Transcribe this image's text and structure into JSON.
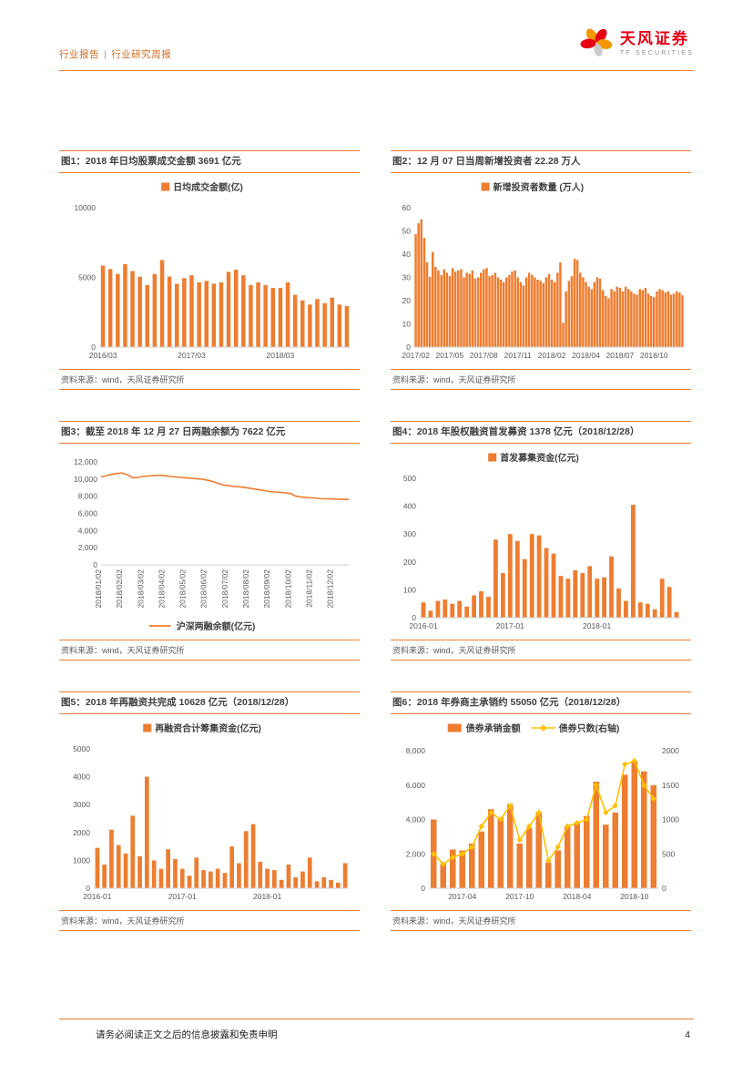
{
  "header": {
    "category": "行业报告",
    "divider": "|",
    "subtitle": "行业研究周报",
    "brand_name": "天风证券",
    "brand_sub": "TF SECURITIES"
  },
  "footer": {
    "disclaimer": "请务必阅读正文之后的信息披露和免责申明",
    "page_number": "4"
  },
  "source_label": "资料来源：wind，天风证券研究所",
  "colors": {
    "accent": "#ED7D31",
    "bar": "#ED7D31",
    "line_secondary": "#FFC000",
    "brand_red": "#E60012",
    "brand_orange": "#F39800",
    "brand_gray": "#C9CACA"
  },
  "chart_data": [
    {
      "id": "figure-1",
      "title": "图1：2018 年日均股票成交金额 3691 亿元",
      "type": "bar",
      "legend": [
        {
          "shape": "square",
          "label": "日均成交金额(亿)",
          "color": "#ED7D31"
        }
      ],
      "legend_pos": "top",
      "bars": {
        "color": "#ED7D31",
        "values": [
          5850,
          5600,
          5250,
          5950,
          5450,
          5050,
          4450,
          5250,
          6250,
          5050,
          4550,
          4950,
          5150,
          4650,
          4750,
          4550,
          4650,
          5400,
          5550,
          5150,
          4450,
          4650,
          4450,
          4250,
          4250,
          4650,
          3750,
          3350,
          3050,
          3450,
          3150,
          3550,
          3050,
          2950
        ]
      },
      "ylim": [
        0,
        10000
      ],
      "yticks": [
        {
          "v": 0,
          "t": "0"
        },
        {
          "v": 5000,
          "t": "5000"
        },
        {
          "v": 10000,
          "t": "10000"
        }
      ],
      "xticks": [
        {
          "index": 0,
          "label": "2016/03"
        },
        {
          "index": 12,
          "label": "2017/03"
        },
        {
          "index": 24,
          "label": "2018/03"
        }
      ]
    },
    {
      "id": "figure-2",
      "title": "图2：12 月 07 日当周新增投资者 22.28 万人",
      "type": "bar",
      "legend": [
        {
          "shape": "square",
          "label": "新增投资者数量 (万人)",
          "color": "#ED7D31"
        }
      ],
      "legend_pos": "top",
      "bars": {
        "color": "#ED7D31",
        "values": [
          48.6,
          53.3,
          55.0,
          47.0,
          36.5,
          30.2,
          41.0,
          34.5,
          33.0,
          31.0,
          33.5,
          32.0,
          30.5,
          34.0,
          32.5,
          33.0,
          33.5,
          30.0,
          32.0,
          31.5,
          33.0,
          29.5,
          30.0,
          32.0,
          33.5,
          34.0,
          30.5,
          31.0,
          32.0,
          30.0,
          29.0,
          28.0,
          30.0,
          31.0,
          32.5,
          33.0,
          30.0,
          28.0,
          26.5,
          30.0,
          32.0,
          31.0,
          30.0,
          29.0,
          28.5,
          27.5,
          30.0,
          31.5,
          29.0,
          28.0,
          32.0,
          36.5,
          10.5,
          24.0,
          28.5,
          30.5,
          38.0,
          37.5,
          32.0,
          30.0,
          28.0,
          26.0,
          25.0,
          28.0,
          30.0,
          29.5,
          24.5,
          22.0,
          21.0,
          25.0,
          24.0,
          26.0,
          25.5,
          24.0,
          26.0,
          25.0,
          24.0,
          23.0,
          22.5,
          25.0,
          24.5,
          25.5,
          23.0,
          22.0,
          21.5,
          24.0,
          25.0,
          24.5,
          23.5,
          24.0,
          22.5,
          23.0,
          24.0,
          23.5,
          22.28
        ]
      },
      "ylim": [
        0,
        60
      ],
      "yticks": [
        {
          "v": 0,
          "t": "0"
        },
        {
          "v": 10,
          "t": "10"
        },
        {
          "v": 20,
          "t": "20"
        },
        {
          "v": 30,
          "t": "30"
        },
        {
          "v": 40,
          "t": "40"
        },
        {
          "v": 50,
          "t": "50"
        },
        {
          "v": 60,
          "t": "60"
        }
      ],
      "xticks": [
        {
          "index": 0,
          "label": "2017/02"
        },
        {
          "index": 12,
          "label": "2017/05"
        },
        {
          "index": 24,
          "label": "2017/08"
        },
        {
          "index": 36,
          "label": "2017/11"
        },
        {
          "index": 48,
          "label": "2018/02"
        },
        {
          "index": 60,
          "label": "2018/04"
        },
        {
          "index": 72,
          "label": "2018/07"
        },
        {
          "index": 84,
          "label": "2018/10"
        }
      ]
    },
    {
      "id": "figure-3",
      "title": "图3：截至 2018 年 12 月 27 日两融余额为 7622 亿元",
      "type": "line",
      "legend": [
        {
          "shape": "line",
          "label": "沪深两融余额(亿元)",
          "color": "#ED7D31"
        }
      ],
      "legend_pos": "bottom",
      "line": {
        "color": "#ED7D31",
        "axis": "left",
        "markers": false,
        "values": [
          10250,
          10400,
          10550,
          10650,
          10700,
          10500,
          10150,
          10200,
          10300,
          10350,
          10400,
          10450,
          10400,
          10300,
          10250,
          10200,
          10150,
          10100,
          10050,
          10000,
          9900,
          9750,
          9550,
          9350,
          9250,
          9150,
          9100,
          9050,
          8950,
          8850,
          8750,
          8650,
          8550,
          8500,
          8450,
          8400,
          8300,
          8000,
          7900,
          7850,
          7800,
          7750,
          7700,
          7700,
          7680,
          7660,
          7640,
          7622
        ]
      },
      "ylim": [
        0,
        12000
      ],
      "yticks": [
        {
          "v": 0,
          "t": "0"
        },
        {
          "v": 2000,
          "t": "2,000"
        },
        {
          "v": 4000,
          "t": "4,000"
        },
        {
          "v": 6000,
          "t": "6,000"
        },
        {
          "v": 8000,
          "t": "8,000"
        },
        {
          "v": 10000,
          "t": "10,000"
        },
        {
          "v": 12000,
          "t": "12,000"
        }
      ],
      "xticks": [
        {
          "index": 0,
          "label": "2018/01/02"
        },
        {
          "index": 4,
          "label": "2018/02/02"
        },
        {
          "index": 8,
          "label": "2018/03/02"
        },
        {
          "index": 12,
          "label": "2018/04/02"
        },
        {
          "index": 16,
          "label": "2018/05/02"
        },
        {
          "index": 20,
          "label": "2018/06/02"
        },
        {
          "index": 24,
          "label": "2018/07/02"
        },
        {
          "index": 28,
          "label": "2018/08/02"
        },
        {
          "index": 32,
          "label": "2018/09/02"
        },
        {
          "index": 36,
          "label": "2018/10/02"
        },
        {
          "index": 40,
          "label": "2018/11/02"
        },
        {
          "index": 44,
          "label": "2018/12/02"
        }
      ]
    },
    {
      "id": "figure-4",
      "title": "图4：2018 年股权融资首发募资 1378 亿元（2018/12/28）",
      "type": "bar",
      "legend": [
        {
          "shape": "square",
          "label": "首发募集资金(亿元)",
          "color": "#ED7D31"
        }
      ],
      "legend_pos": "top",
      "bars": {
        "color": "#ED7D31",
        "values": [
          55,
          25,
          60,
          65,
          50,
          60,
          40,
          80,
          95,
          75,
          280,
          160,
          300,
          275,
          210,
          300,
          295,
          250,
          230,
          150,
          140,
          170,
          160,
          185,
          140,
          145,
          220,
          105,
          60,
          405,
          55,
          50,
          30,
          140,
          110,
          20
        ]
      },
      "ylim": [
        0,
        500
      ],
      "yticks": [
        {
          "v": 0,
          "t": "0"
        },
        {
          "v": 100,
          "t": "100"
        },
        {
          "v": 200,
          "t": "200"
        },
        {
          "v": 300,
          "t": "300"
        },
        {
          "v": 400,
          "t": "400"
        },
        {
          "v": 500,
          "t": "500"
        }
      ],
      "xticks": [
        {
          "index": 0,
          "label": "2016-01"
        },
        {
          "index": 12,
          "label": "2017-01"
        },
        {
          "index": 24,
          "label": "2018-01"
        }
      ]
    },
    {
      "id": "figure-5",
      "title": "图5：2018 年再融资共完成 10628 亿元（2018/12/28）",
      "type": "bar",
      "legend": [
        {
          "shape": "square",
          "label": "再融资合计筹集资金(亿元)",
          "color": "#ED7D31"
        }
      ],
      "legend_pos": "top",
      "bars": {
        "color": "#ED7D31",
        "values": [
          1450,
          850,
          2100,
          1550,
          1250,
          2600,
          1150,
          4000,
          1000,
          700,
          1400,
          1050,
          700,
          450,
          1100,
          650,
          600,
          700,
          550,
          1500,
          900,
          2050,
          2300,
          950,
          700,
          650,
          300,
          850,
          400,
          600,
          1100,
          250,
          400,
          300,
          200,
          900
        ]
      },
      "ylim": [
        0,
        5000
      ],
      "yticks": [
        {
          "v": 0,
          "t": "0"
        },
        {
          "v": 1000,
          "t": "1000"
        },
        {
          "v": 2000,
          "t": "2000"
        },
        {
          "v": 3000,
          "t": "3000"
        },
        {
          "v": 4000,
          "t": "4000"
        },
        {
          "v": 5000,
          "t": "5000"
        }
      ],
      "xticks": [
        {
          "index": 0,
          "label": "2016-01"
        },
        {
          "index": 12,
          "label": "2017-01"
        },
        {
          "index": 24,
          "label": "2018-01"
        }
      ]
    },
    {
      "id": "figure-6",
      "title": "图6：2018 年券商主承销约 55050 亿元（2018/12/28）",
      "type": "combo",
      "legend": [
        {
          "shape": "bar",
          "label": "债券承销金额",
          "color": "#ED7D31"
        },
        {
          "shape": "line-diamond",
          "label": "债券只数(右轴)",
          "color": "#FFC000"
        }
      ],
      "legend_pos": "top",
      "bars": {
        "color": "#ED7D31",
        "values": [
          4000,
          1450,
          2250,
          2200,
          2600,
          3300,
          4600,
          4100,
          4900,
          2600,
          3500,
          4400,
          1500,
          2200,
          3600,
          3800,
          4200,
          6200,
          3700,
          4400,
          6600,
          7400,
          6800,
          6000
        ]
      },
      "line": {
        "color": "#FFC000",
        "axis": "right",
        "markers": true,
        "values": [
          500,
          350,
          450,
          500,
          600,
          900,
          1100,
          1000,
          1200,
          700,
          900,
          1100,
          400,
          600,
          900,
          950,
          1000,
          1500,
          1100,
          1200,
          1800,
          1850,
          1500,
          1300
        ]
      },
      "ylim": [
        0,
        8000
      ],
      "yticks": [
        {
          "v": 0,
          "t": "0"
        },
        {
          "v": 2000,
          "t": "2,000"
        },
        {
          "v": 4000,
          "t": "4,000"
        },
        {
          "v": 6000,
          "t": "6,000"
        },
        {
          "v": 8000,
          "t": "8,000"
        }
      ],
      "y2lim": [
        0,
        2000
      ],
      "y2ticks": [
        {
          "v": 0,
          "t": "0"
        },
        {
          "v": 500,
          "t": "500"
        },
        {
          "v": 1000,
          "t": "1000"
        },
        {
          "v": 1500,
          "t": "1500"
        },
        {
          "v": 2000,
          "t": "2000"
        }
      ],
      "xticks": [
        {
          "index": 3,
          "label": "2017-04"
        },
        {
          "index": 9,
          "label": "2017-10"
        },
        {
          "index": 15,
          "label": "2018-04"
        },
        {
          "index": 21,
          "label": "2018-10"
        }
      ]
    }
  ]
}
